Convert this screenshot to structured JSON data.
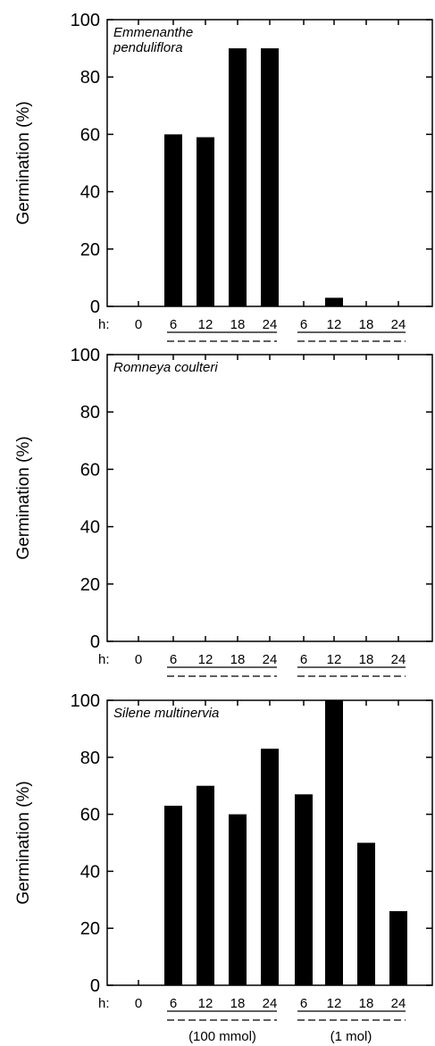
{
  "x_prefix": "h:",
  "group_labels": [
    "(100 mmol)",
    "(1 mol)"
  ],
  "chart_data": [
    {
      "type": "bar",
      "annotation": [
        "Emmenanthe",
        "penduliflora"
      ],
      "ylabel": "Germination (%)",
      "ylim": [
        0,
        100
      ],
      "yticks": [
        0,
        20,
        40,
        60,
        80,
        100
      ],
      "categories": [
        "0",
        "6",
        "12",
        "18",
        "24",
        "6",
        "12",
        "18",
        "24"
      ],
      "values": [
        0,
        60,
        59,
        90,
        90,
        0,
        3,
        0,
        0
      ]
    },
    {
      "type": "bar",
      "annotation": [
        "Romneya coulteri"
      ],
      "ylabel": "Germination (%)",
      "ylim": [
        0,
        100
      ],
      "yticks": [
        0,
        20,
        40,
        60,
        80,
        100
      ],
      "categories": [
        "0",
        "6",
        "12",
        "18",
        "24",
        "6",
        "12",
        "18",
        "24"
      ],
      "values": [
        0,
        0,
        0,
        0,
        0,
        0,
        0,
        0,
        0
      ]
    },
    {
      "type": "bar",
      "annotation": [
        "Silene multinervia"
      ],
      "ylabel": "Germination (%)",
      "ylim": [
        0,
        100
      ],
      "yticks": [
        0,
        20,
        40,
        60,
        80,
        100
      ],
      "categories": [
        "0",
        "6",
        "12",
        "18",
        "24",
        "6",
        "12",
        "18",
        "24"
      ],
      "values": [
        0,
        63,
        70,
        60,
        83,
        67,
        100,
        50,
        26
      ]
    }
  ]
}
